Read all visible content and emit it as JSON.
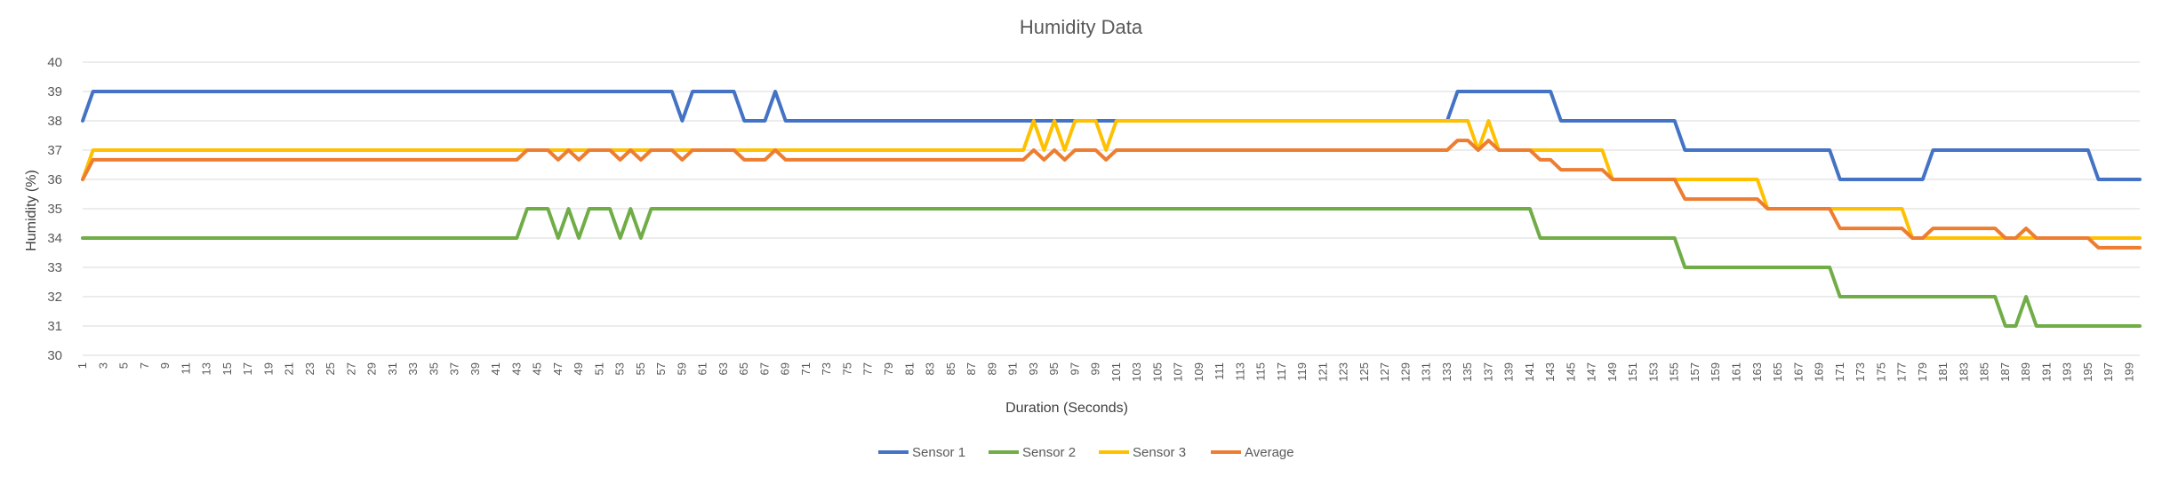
{
  "chart_data": {
    "type": "line",
    "title": "Humidity Data",
    "xlabel": "Duration (Seconds)",
    "ylabel": "Humidity (%)",
    "ylim": [
      30,
      40
    ],
    "yticks": [
      30,
      31,
      32,
      33,
      34,
      35,
      36,
      37,
      38,
      39,
      40
    ],
    "x_start": 1,
    "x_end": 200,
    "x_tick_labels": [
      "1",
      "3",
      "5",
      "7",
      "9",
      "11",
      "13",
      "15",
      "17",
      "19",
      "21",
      "23",
      "25",
      "27",
      "29",
      "31",
      "33",
      "35",
      "37",
      "39",
      "41",
      "43",
      "45",
      "47",
      "49",
      "51",
      "53",
      "55",
      "57",
      "59",
      "61",
      "63",
      "65",
      "67",
      "69",
      "71",
      "73",
      "75",
      "77",
      "79",
      "81",
      "83",
      "85",
      "87",
      "89",
      "91",
      "93",
      "95",
      "97",
      "99",
      "101",
      "103",
      "105",
      "107",
      "109",
      "111",
      "113",
      "115",
      "117",
      "119",
      "121",
      "123",
      "125",
      "127",
      "129",
      "131",
      "133",
      "135",
      "137",
      "139",
      "141",
      "143",
      "145",
      "147",
      "149",
      "151",
      "153",
      "155",
      "157",
      "159",
      "161",
      "163",
      "165",
      "167",
      "169",
      "171",
      "173",
      "175",
      "177",
      "179",
      "181",
      "183",
      "185",
      "187",
      "189",
      "191",
      "193",
      "195",
      "197",
      "199"
    ],
    "grid": true,
    "legend_position": "bottom",
    "series": [
      {
        "name": "Sensor 1",
        "color": "#4472C4",
        "segments": [
          {
            "from": 1,
            "to": 1,
            "value": 38
          },
          {
            "from": 2,
            "to": 58,
            "value": 39
          },
          {
            "from": 59,
            "to": 59,
            "value": 38
          },
          {
            "from": 60,
            "to": 64,
            "value": 39
          },
          {
            "from": 65,
            "to": 67,
            "value": 38
          },
          {
            "from": 68,
            "to": 68,
            "value": 39
          },
          {
            "from": 69,
            "to": 133,
            "value": 38
          },
          {
            "from": 134,
            "to": 143,
            "value": 39
          },
          {
            "from": 144,
            "to": 155,
            "value": 38
          },
          {
            "from": 156,
            "to": 170,
            "value": 37
          },
          {
            "from": 171,
            "to": 179,
            "value": 36
          },
          {
            "from": 180,
            "to": 195,
            "value": 37
          },
          {
            "from": 196,
            "to": 200,
            "value": 36
          }
        ]
      },
      {
        "name": "Sensor 2",
        "color": "#70AD47",
        "segments": [
          {
            "from": 1,
            "to": 43,
            "value": 34
          },
          {
            "from": 44,
            "to": 46,
            "value": 35
          },
          {
            "from": 47,
            "to": 47,
            "value": 34
          },
          {
            "from": 48,
            "to": 48,
            "value": 35
          },
          {
            "from": 49,
            "to": 49,
            "value": 34
          },
          {
            "from": 50,
            "to": 52,
            "value": 35
          },
          {
            "from": 53,
            "to": 53,
            "value": 34
          },
          {
            "from": 54,
            "to": 54,
            "value": 35
          },
          {
            "from": 55,
            "to": 55,
            "value": 34
          },
          {
            "from": 56,
            "to": 141,
            "value": 35
          },
          {
            "from": 142,
            "to": 155,
            "value": 34
          },
          {
            "from": 156,
            "to": 170,
            "value": 33
          },
          {
            "from": 171,
            "to": 186,
            "value": 32
          },
          {
            "from": 187,
            "to": 188,
            "value": 31
          },
          {
            "from": 189,
            "to": 189,
            "value": 32
          },
          {
            "from": 190,
            "to": 200,
            "value": 31
          }
        ]
      },
      {
        "name": "Sensor 3",
        "color": "#FFC000",
        "segments": [
          {
            "from": 1,
            "to": 1,
            "value": 36
          },
          {
            "from": 2,
            "to": 92,
            "value": 37
          },
          {
            "from": 93,
            "to": 93,
            "value": 38
          },
          {
            "from": 94,
            "to": 94,
            "value": 37
          },
          {
            "from": 95,
            "to": 95,
            "value": 38
          },
          {
            "from": 96,
            "to": 96,
            "value": 37
          },
          {
            "from": 97,
            "to": 99,
            "value": 38
          },
          {
            "from": 100,
            "to": 100,
            "value": 37
          },
          {
            "from": 101,
            "to": 135,
            "value": 38
          },
          {
            "from": 136,
            "to": 136,
            "value": 37
          },
          {
            "from": 137,
            "to": 137,
            "value": 38
          },
          {
            "from": 138,
            "to": 148,
            "value": 37
          },
          {
            "from": 149,
            "to": 155,
            "value": 36
          },
          {
            "from": 156,
            "to": 163,
            "value": 36
          },
          {
            "from": 164,
            "to": 177,
            "value": 35
          },
          {
            "from": 178,
            "to": 200,
            "value": 34
          }
        ]
      },
      {
        "name": "Average",
        "color": "#ED7D31",
        "segments": [
          {
            "from": 1,
            "to": 1,
            "value": 36
          },
          {
            "from": 2,
            "to": 43,
            "value": 36.67
          },
          {
            "from": 44,
            "to": 46,
            "value": 37
          },
          {
            "from": 47,
            "to": 47,
            "value": 36.67
          },
          {
            "from": 48,
            "to": 48,
            "value": 37
          },
          {
            "from": 49,
            "to": 49,
            "value": 36.67
          },
          {
            "from": 50,
            "to": 52,
            "value": 37
          },
          {
            "from": 53,
            "to": 53,
            "value": 36.67
          },
          {
            "from": 54,
            "to": 54,
            "value": 37
          },
          {
            "from": 55,
            "to": 55,
            "value": 36.67
          },
          {
            "from": 56,
            "to": 58,
            "value": 37
          },
          {
            "from": 59,
            "to": 59,
            "value": 36.67
          },
          {
            "from": 60,
            "to": 64,
            "value": 37
          },
          {
            "from": 65,
            "to": 67,
            "value": 36.67
          },
          {
            "from": 68,
            "to": 68,
            "value": 37
          },
          {
            "from": 69,
            "to": 92,
            "value": 36.67
          },
          {
            "from": 93,
            "to": 93,
            "value": 37
          },
          {
            "from": 94,
            "to": 94,
            "value": 36.67
          },
          {
            "from": 95,
            "to": 95,
            "value": 37
          },
          {
            "from": 96,
            "to": 96,
            "value": 36.67
          },
          {
            "from": 97,
            "to": 99,
            "value": 37
          },
          {
            "from": 100,
            "to": 100,
            "value": 36.67
          },
          {
            "from": 101,
            "to": 133,
            "value": 37
          },
          {
            "from": 134,
            "to": 135,
            "value": 37.33
          },
          {
            "from": 136,
            "to": 136,
            "value": 37
          },
          {
            "from": 137,
            "to": 137,
            "value": 37.33
          },
          {
            "from": 138,
            "to": 141,
            "value": 37
          },
          {
            "from": 142,
            "to": 143,
            "value": 36.67
          },
          {
            "from": 144,
            "to": 148,
            "value": 36.33
          },
          {
            "from": 149,
            "to": 155,
            "value": 36
          },
          {
            "from": 156,
            "to": 163,
            "value": 35.33
          },
          {
            "from": 164,
            "to": 170,
            "value": 35
          },
          {
            "from": 171,
            "to": 177,
            "value": 34.33
          },
          {
            "from": 178,
            "to": 179,
            "value": 34
          },
          {
            "from": 180,
            "to": 186,
            "value": 34.33
          },
          {
            "from": 187,
            "to": 188,
            "value": 34
          },
          {
            "from": 189,
            "to": 189,
            "value": 34.33
          },
          {
            "from": 190,
            "to": 195,
            "value": 34
          },
          {
            "from": 196,
            "to": 200,
            "value": 33.67
          }
        ]
      }
    ]
  }
}
